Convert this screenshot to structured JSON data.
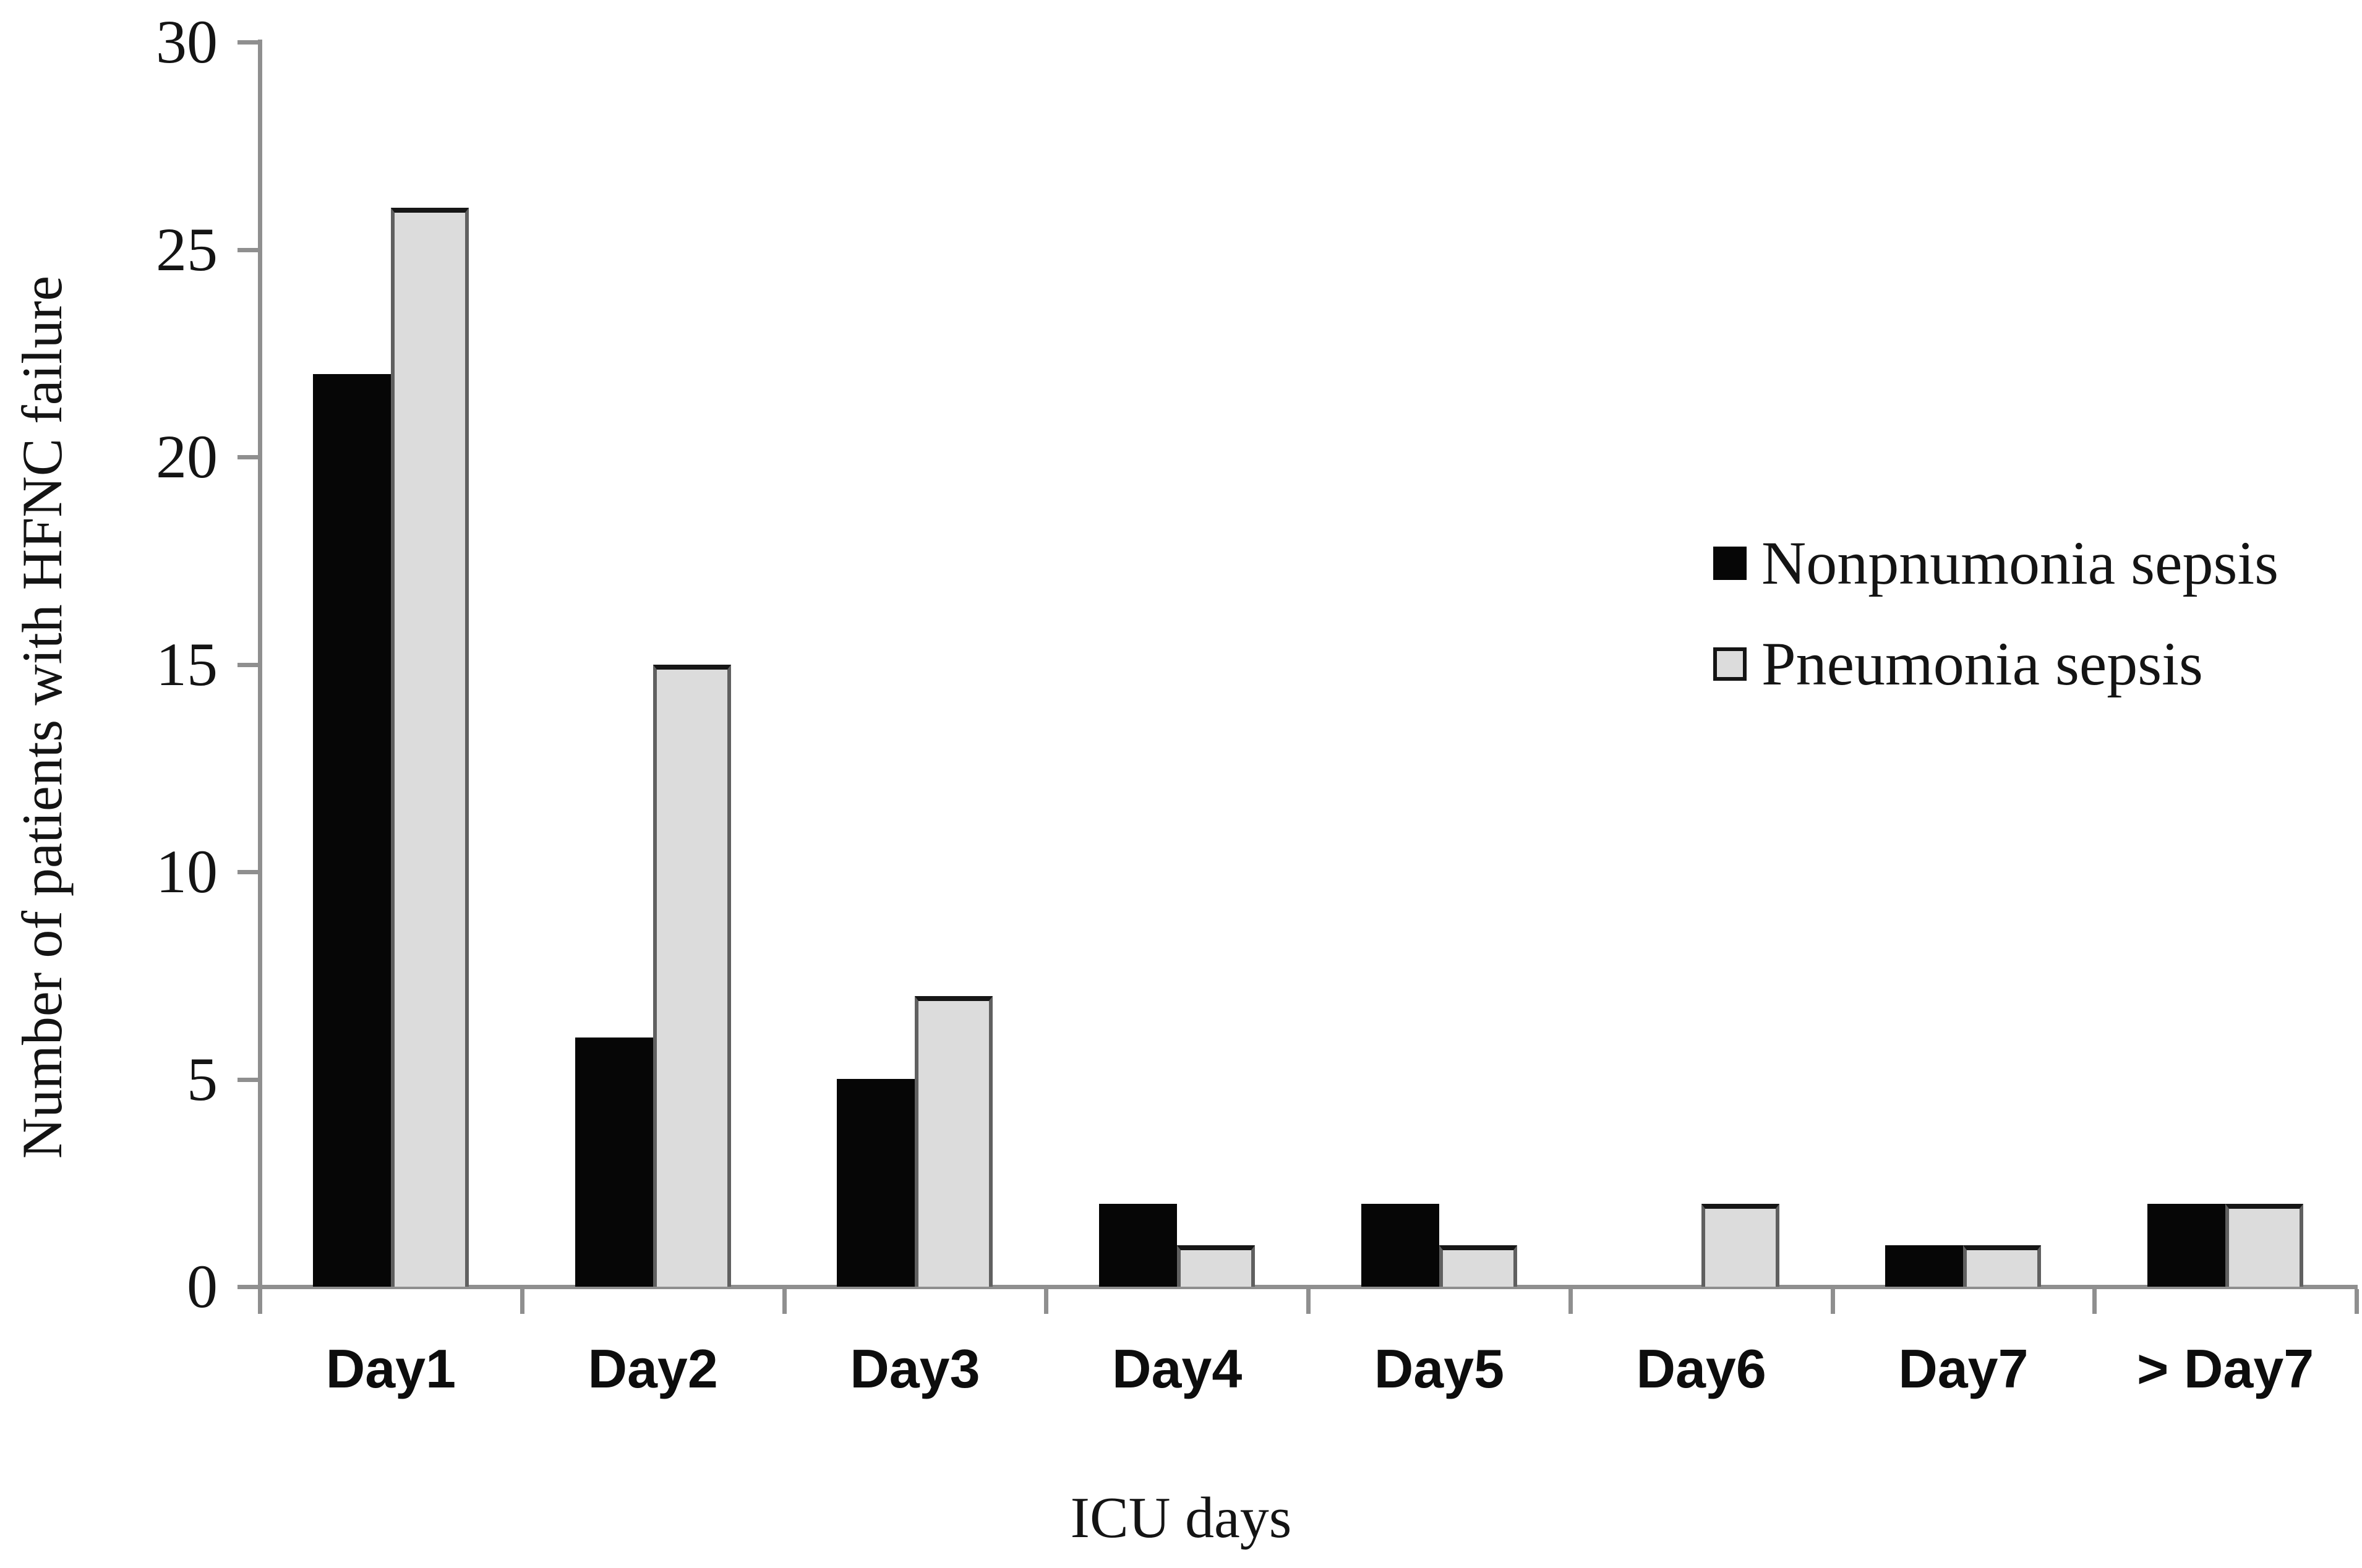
{
  "chart_data": {
    "type": "bar",
    "title": "",
    "categories": [
      "Day1",
      "Day2",
      "Day3",
      "Day4",
      "Day5",
      "Day6",
      "Day7",
      "> Day7"
    ],
    "series": [
      {
        "name": "Nonpnumonia sepsis",
        "color": "#060606",
        "outline": false,
        "values": [
          22,
          6,
          5,
          2,
          2,
          0,
          1,
          2
        ]
      },
      {
        "name": "Pneumonia sepsis",
        "color": "#dcdcdc",
        "outline": true,
        "values": [
          26,
          15,
          7,
          1,
          1,
          2,
          1,
          2
        ]
      }
    ],
    "xlabel": "ICU days",
    "ylabel": "Number of patients with HFNC failure",
    "ylim": [
      0,
      30
    ],
    "yticks": [
      0,
      5,
      10,
      15,
      20,
      25,
      30
    ],
    "grid": false,
    "legend_position": "upper right",
    "colors": {
      "axis_line": "#8f8f8f",
      "text": "#141414",
      "bar_outline_side": "#606060",
      "bar_outline_top": "#161616",
      "background": "#ffffff"
    }
  }
}
